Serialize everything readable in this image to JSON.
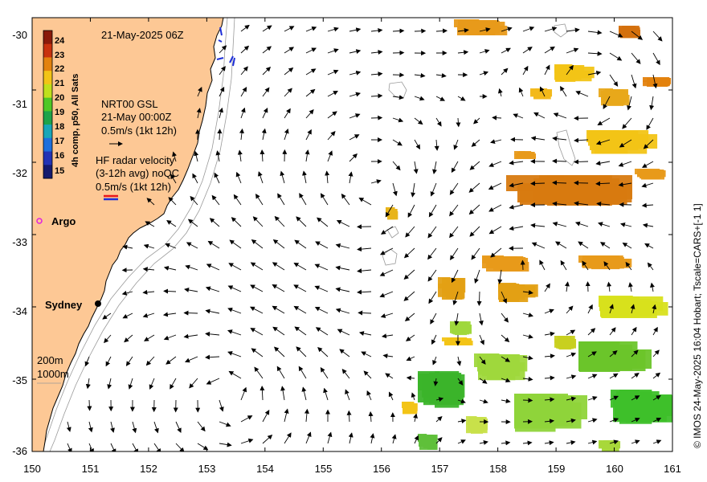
{
  "map": {
    "date_label": "21-May-2025 06Z",
    "x_ticks": [
      "150",
      "151",
      "152",
      "153",
      "154",
      "155",
      "156",
      "157",
      "158",
      "159",
      "160",
      "161"
    ],
    "y_ticks": [
      "-30",
      "-31",
      "-32",
      "-33",
      "-34",
      "-35",
      "-36"
    ],
    "lon_range": [
      150,
      161
    ],
    "lat_range": [
      -36,
      -30
    ],
    "colors": {
      "land": "#fdc895",
      "ocean": "#ffffff",
      "arrow": "#000000",
      "radar_red": "#e8161b",
      "radar_blue": "#1e2fd8",
      "argo": "#e020e0"
    }
  },
  "colorbar": {
    "title": "4h comp, p50, All Sats",
    "ticks": [
      "24",
      "23",
      "22",
      "21",
      "20",
      "19",
      "18",
      "17",
      "16",
      "15"
    ],
    "colors": [
      "#8a1a0a",
      "#c8320e",
      "#e3820e",
      "#f2c416",
      "#bfe01c",
      "#4fc726",
      "#1ea34a",
      "#18a6b8",
      "#1e6fdc",
      "#2333b5",
      "#141a6e"
    ]
  },
  "legend": {
    "gsl_line1": "NRT00 GSL",
    "gsl_line2": "21-May 00:00Z",
    "gsl_line3": "0.5m/s (1kt 12h)",
    "radar_line1": "HF radar velocity",
    "radar_line2": "(3-12h avg) noQC",
    "radar_line3": "0.5m/s (1kt 12h)",
    "argo_label": "Argo",
    "city_label": "Sydney",
    "depth_200": "200m",
    "depth_1000": "1000m"
  },
  "footer": {
    "credit": "© IMOS 24-May-2025 16:04 Hobart; Tscale=CARS+[-1 1]"
  }
}
